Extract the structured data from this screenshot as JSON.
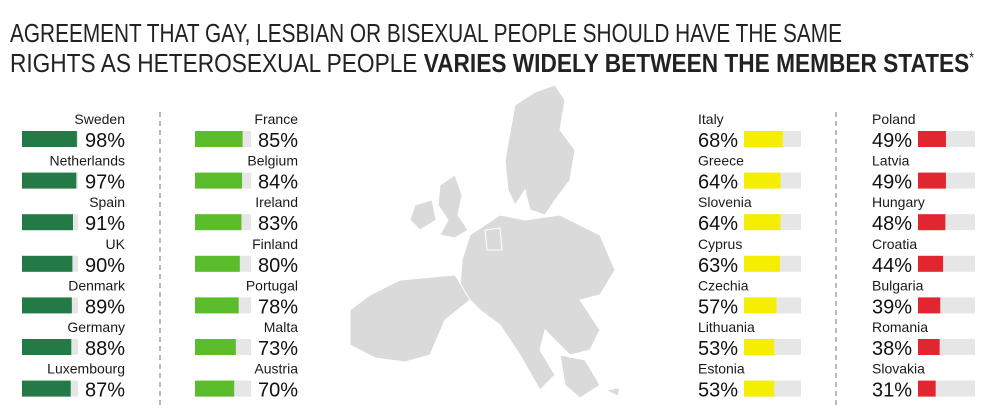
{
  "title": {
    "line1": "AGREEMENT THAT GAY, LESBIAN OR BISEXUAL PEOPLE SHOULD HAVE THE SAME",
    "line2": "RIGHTS AS HETEROSEXUAL PEOPLE",
    "line2_bold": "VARIES WIDELY BETWEEN THE MEMBER STATES",
    "note": "*"
  },
  "chart_data": [
    {
      "type": "bar",
      "categories": [
        "Sweden",
        "Netherlands",
        "Spain",
        "UK",
        "Denmark",
        "Germany",
        "Luxembourg"
      ],
      "values": [
        98,
        97,
        91,
        90,
        89,
        88,
        87
      ],
      "value_labels": [
        "98%",
        "97%",
        "91%",
        "90%",
        "89%",
        "88%",
        "87%"
      ],
      "color": "#237a47",
      "xlim": [
        0,
        100
      ]
    },
    {
      "type": "bar",
      "categories": [
        "France",
        "Belgium",
        "Ireland",
        "Finland",
        "Portugal",
        "Malta",
        "Austria"
      ],
      "values": [
        85,
        84,
        83,
        80,
        78,
        73,
        70
      ],
      "value_labels": [
        "85%",
        "84%",
        "83%",
        "80%",
        "78%",
        "73%",
        "70%"
      ],
      "color": "#5cbd2c",
      "xlim": [
        0,
        100
      ]
    },
    {
      "type": "bar",
      "categories": [
        "Italy",
        "Greece",
        "Slovenia",
        "Cyprus",
        "Czechia",
        "Lithuania",
        "Estonia"
      ],
      "values": [
        68,
        64,
        64,
        63,
        57,
        53,
        53
      ],
      "value_labels": [
        "68%",
        "64%",
        "64%",
        "63%",
        "57%",
        "53%",
        "53%"
      ],
      "color": "#f6ee00",
      "xlim": [
        0,
        100
      ]
    },
    {
      "type": "bar",
      "categories": [
        "Poland",
        "Latvia",
        "Hungary",
        "Croatia",
        "Bulgaria",
        "Romania",
        "Slovakia"
      ],
      "values": [
        49,
        49,
        48,
        44,
        39,
        38,
        31
      ],
      "value_labels": [
        "49%",
        "49%",
        "48%",
        "44%",
        "39%",
        "38%",
        "31%"
      ],
      "color": "#e2262f",
      "xlim": [
        0,
        100
      ]
    }
  ]
}
